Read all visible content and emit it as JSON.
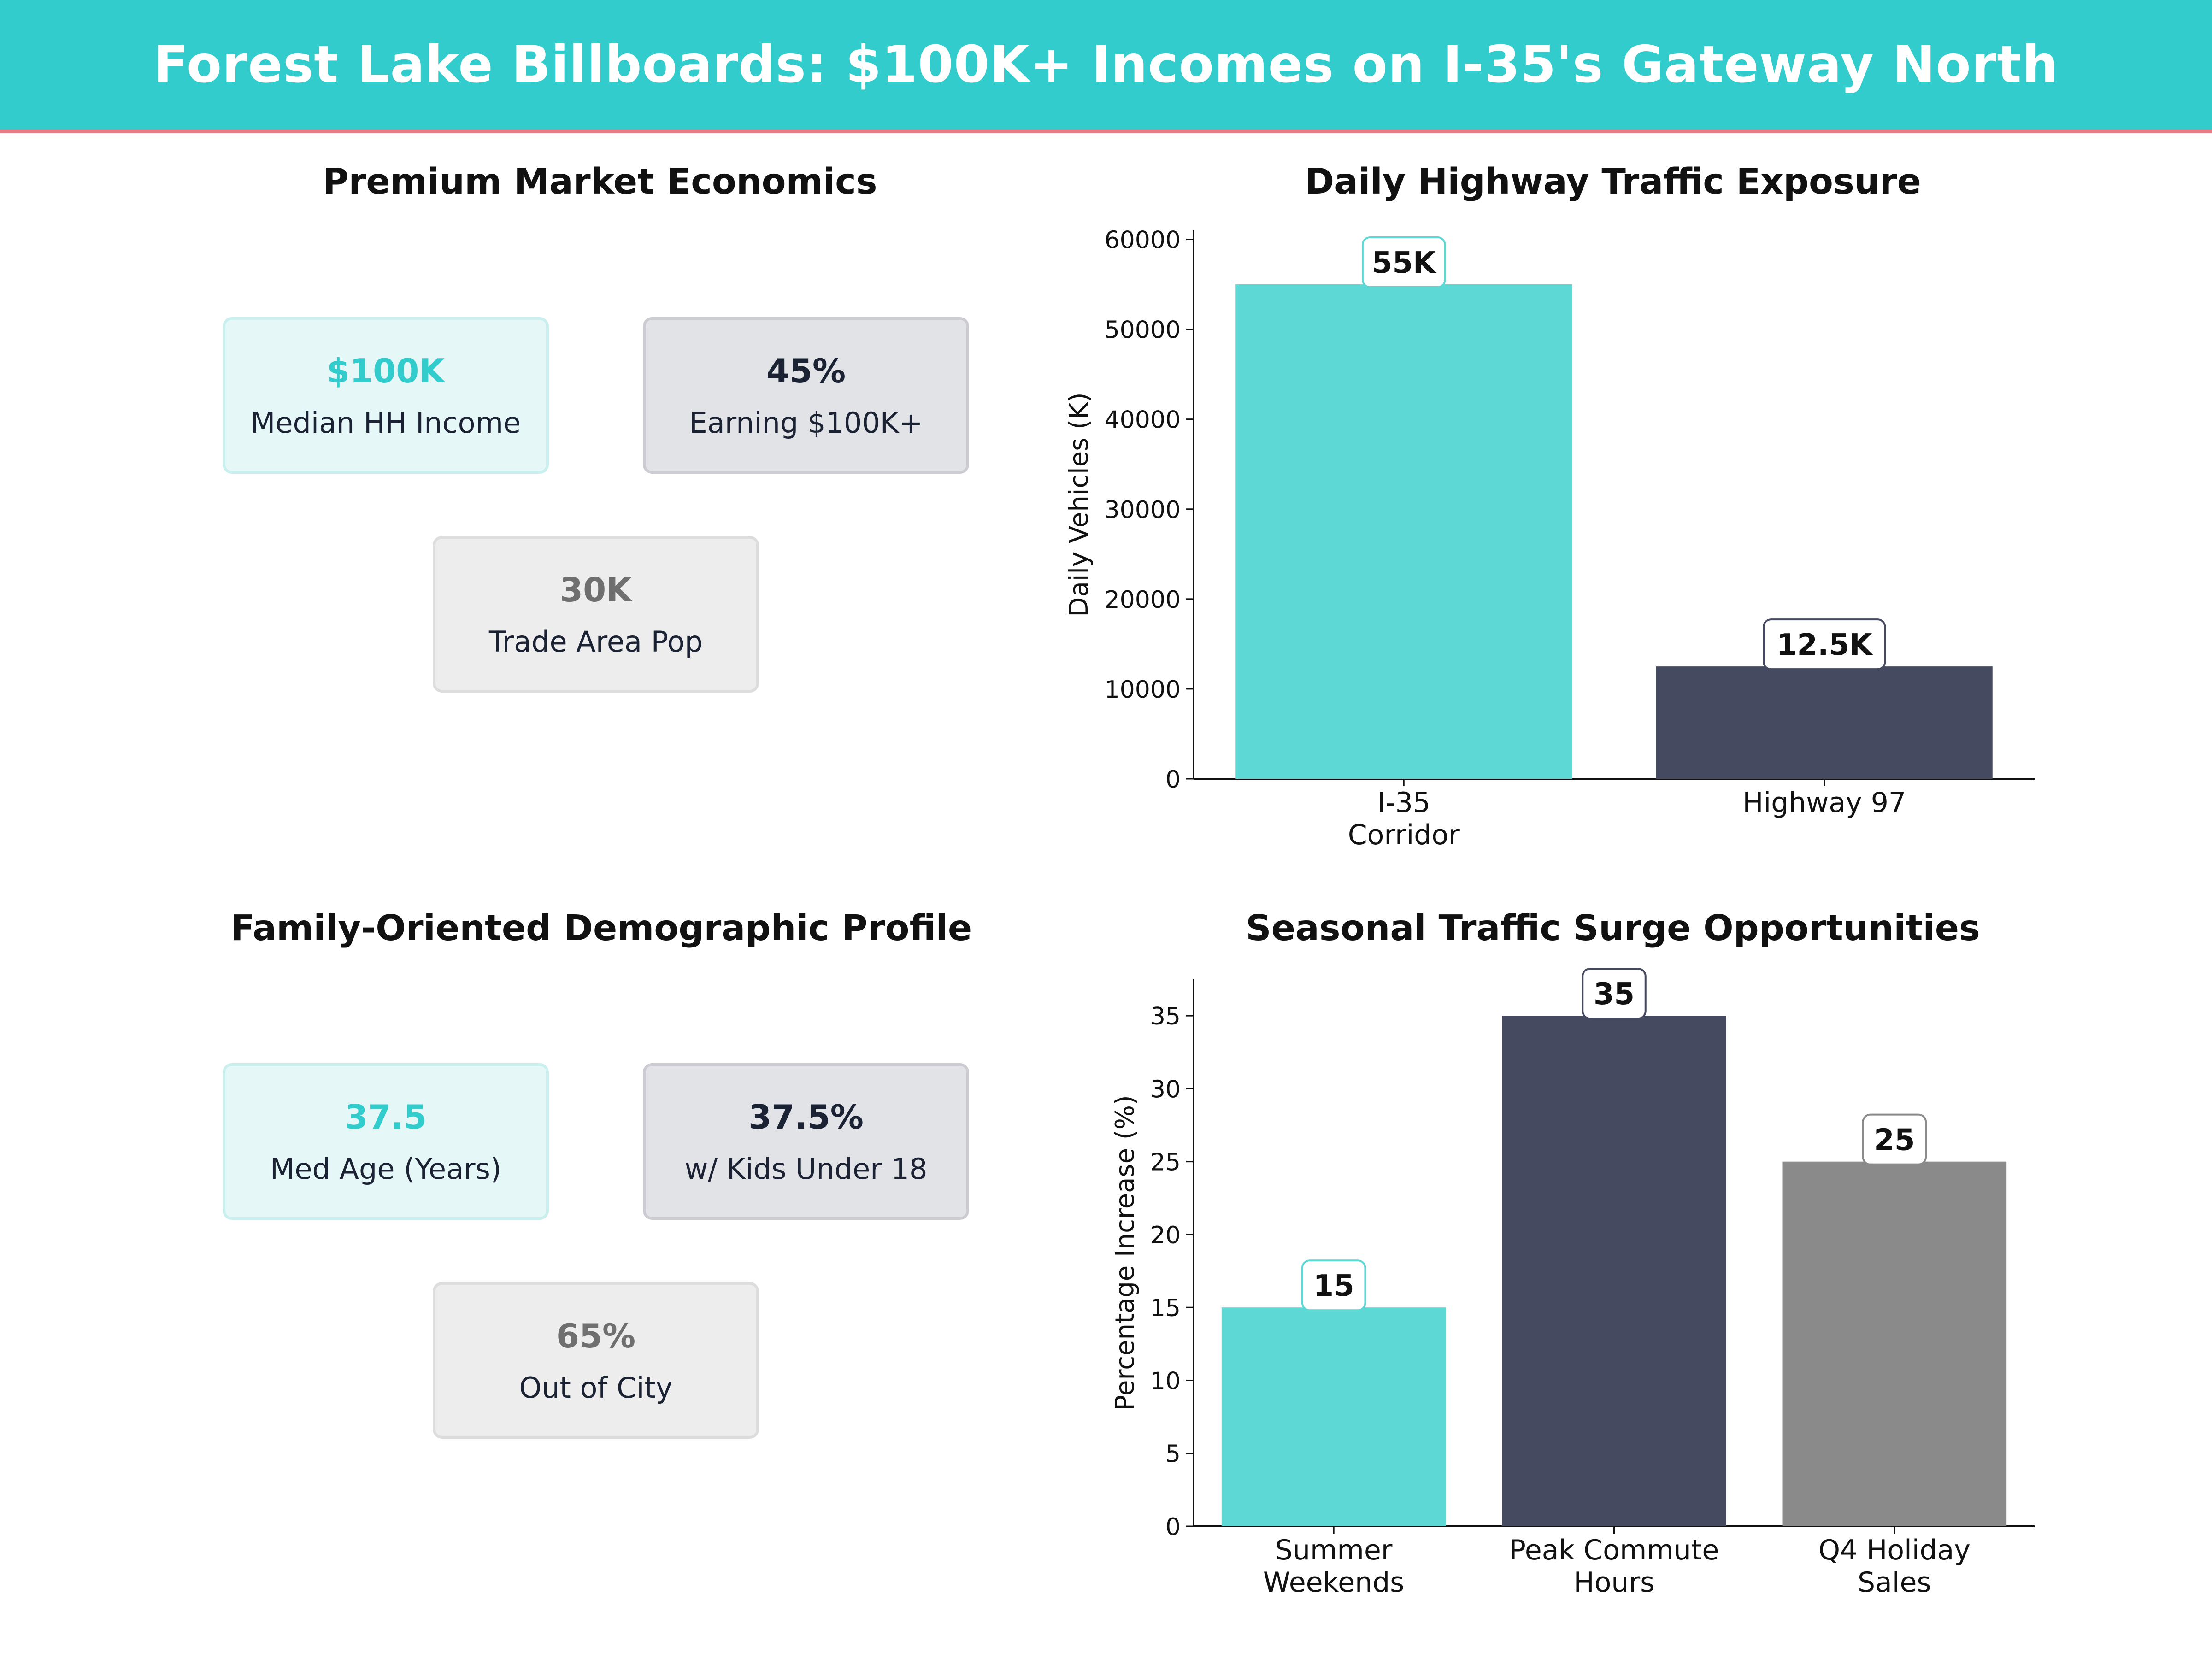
{
  "header": {
    "title": "Forest Lake Billboards: $100K+ Incomes on I-35's Gateway North"
  },
  "colors": {
    "teal": "#5ED8D5",
    "navy": "#454A60",
    "gray": "#8A8A8A",
    "banner": "#33CCCC",
    "banner_rule": "#E87C86"
  },
  "economics": {
    "title": "Premium Market Economics",
    "cards": [
      {
        "value": "$100K",
        "label": "Median HH Income"
      },
      {
        "value": "45%",
        "label": "Earning $100K+"
      },
      {
        "value": "30K",
        "label": "Trade Area Pop"
      }
    ]
  },
  "demographics": {
    "title": "Family-Oriented Demographic Profile",
    "cards": [
      {
        "value": "37.5",
        "label": "Med Age (Years)"
      },
      {
        "value": "37.5%",
        "label": "w/ Kids Under 18"
      },
      {
        "value": "65%",
        "label": "Out of City"
      }
    ]
  },
  "chart_data": [
    {
      "type": "bar",
      "title": "Daily Highway Traffic Exposure",
      "ylabel": "Daily Vehicles (K)",
      "xlabel": "",
      "categories": [
        [
          "I-35",
          "Corridor"
        ],
        [
          "Highway 97"
        ]
      ],
      "values": [
        55000,
        12500
      ],
      "data_labels": [
        "55K",
        "12.5K"
      ],
      "bar_colors": [
        "#5ED8D5",
        "#454A60"
      ],
      "label_borders": [
        "#5ED8D5",
        "#454A60"
      ],
      "ylim": [
        0,
        61000
      ],
      "yticks": [
        0,
        10000,
        20000,
        30000,
        40000,
        50000,
        60000
      ],
      "grid": false
    },
    {
      "type": "bar",
      "title": "Seasonal Traffic Surge Opportunities",
      "ylabel": "Percentage Increase (%)",
      "xlabel": "",
      "categories": [
        [
          "Summer",
          "Weekends"
        ],
        [
          "Peak Commute",
          "Hours"
        ],
        [
          "Q4 Holiday",
          "Sales"
        ]
      ],
      "values": [
        15,
        35,
        25
      ],
      "data_labels": [
        "15",
        "35",
        "25"
      ],
      "bar_colors": [
        "#5ED8D5",
        "#454A60",
        "#8A8A8A"
      ],
      "label_borders": [
        "#5ED8D5",
        "#454A60",
        "#8A8A8A"
      ],
      "ylim": [
        0,
        37.5
      ],
      "yticks": [
        0,
        5,
        10,
        15,
        20,
        25,
        30,
        35
      ],
      "grid": false
    }
  ]
}
